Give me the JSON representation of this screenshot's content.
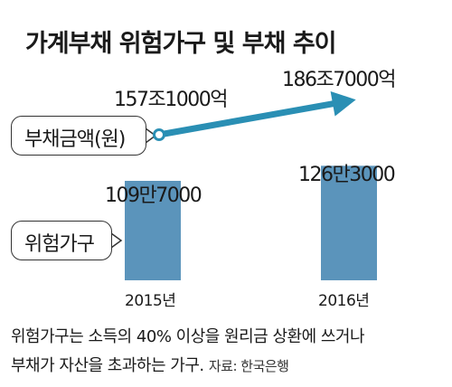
{
  "title": "가계부채 위험가구 및 부채 추이",
  "chart_data": [
    {
      "type": "line",
      "label": "부채금액(원)",
      "categories": [
        "2015년",
        "2016년"
      ],
      "values": [
        1571000,
        1867000
      ],
      "unit": "억 원",
      "data_labels": [
        "157조1000억",
        "186조7000억"
      ],
      "color": "#2a8fb4"
    },
    {
      "type": "bar",
      "label": "위험가구",
      "categories": [
        "2015년",
        "2016년"
      ],
      "values": [
        1097000,
        1263000
      ],
      "data_labels": [
        "109만7000",
        "126만3000"
      ],
      "color": "#5b94bb"
    }
  ],
  "note": {
    "line1": "위험가구는 소득의 40% 이상을 원리금 상환에 쓰거나",
    "line2": "부채가 자산을 초과하는 가구.",
    "source": "자료: 한국은행"
  }
}
